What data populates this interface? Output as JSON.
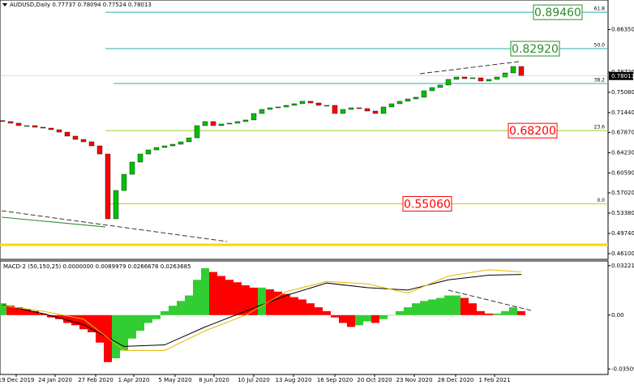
{
  "chart_data": [
    {
      "type": "candlestick",
      "title": "AUDUSD,Daily  0.77737 0.78094 0.77524 0.78013",
      "open": [
        0.7,
        0.6983,
        0.6954,
        0.691,
        0.691,
        0.6881,
        0.6866,
        0.6837,
        0.6793,
        0.6721,
        0.6662,
        0.6619,
        0.6546,
        0.64,
        0.5236,
        0.5745,
        0.6036,
        0.6255,
        0.64,
        0.6473,
        0.6517,
        0.6546,
        0.6575,
        0.6619,
        0.6691,
        0.691,
        0.6983,
        0.691,
        0.6939,
        0.6954,
        0.6983,
        0.7012,
        0.7128,
        0.7201,
        0.723,
        0.7245,
        0.7274,
        0.7303,
        0.7347,
        0.7317,
        0.7274,
        0.7274,
        0.7128,
        0.7201,
        0.723,
        0.7216,
        0.7172,
        0.7128,
        0.7245,
        0.7303,
        0.7347,
        0.739,
        0.742,
        0.7536,
        0.7594,
        0.7638,
        0.774,
        0.7783,
        0.7754,
        0.7769,
        0.7711,
        0.774,
        0.7783,
        0.7856,
        0.7972
      ],
      "close": [
        0.6983,
        0.6954,
        0.691,
        0.691,
        0.6881,
        0.6866,
        0.6837,
        0.6793,
        0.6721,
        0.6662,
        0.6619,
        0.6546,
        0.64,
        0.5236,
        0.5745,
        0.6036,
        0.6255,
        0.64,
        0.6473,
        0.6517,
        0.6546,
        0.6575,
        0.6619,
        0.6691,
        0.691,
        0.6983,
        0.691,
        0.6939,
        0.6954,
        0.6983,
        0.7012,
        0.7128,
        0.7201,
        0.723,
        0.7245,
        0.7274,
        0.7303,
        0.7347,
        0.7317,
        0.7274,
        0.7274,
        0.7128,
        0.7201,
        0.723,
        0.7216,
        0.7172,
        0.7128,
        0.7245,
        0.7303,
        0.7347,
        0.739,
        0.742,
        0.7536,
        0.7594,
        0.7638,
        0.774,
        0.7783,
        0.7754,
        0.7769,
        0.7711,
        0.774,
        0.7783,
        0.7856,
        0.7972,
        0.7812
      ],
      "up_color": "#00c000",
      "down_color": "#ff0000",
      "xlim": [
        -0.3,
        74.7
      ],
      "ylim": [
        0.4537,
        0.9137
      ],
      "yticks": [
        {
          "value": 0.8635,
          "label": "0.86350"
        },
        {
          "value": 0.7872,
          "label": "0.78720"
        },
        {
          "value": 0.7508,
          "label": "0.75080"
        },
        {
          "value": 0.7144,
          "label": "0.71440"
        },
        {
          "value": 0.6787,
          "label": "0.67870"
        },
        {
          "value": 0.6423,
          "label": "0.64230"
        },
        {
          "value": 0.6059,
          "label": "0.60590"
        },
        {
          "value": 0.5702,
          "label": "0.57020"
        },
        {
          "value": 0.5338,
          "label": "0.53380"
        },
        {
          "value": 0.4974,
          "label": "0.49740"
        },
        {
          "value": 0.461,
          "label": "0.46100"
        }
      ],
      "current_price": 0.78013,
      "levels": [
        {
          "value": 0.8946,
          "label": "0.89460",
          "ratio": "61.8",
          "color": "#20b2aa",
          "label_color": "#2e8b2e"
        },
        {
          "value": 0.8292,
          "label": "0.82920",
          "ratio": "50.0",
          "color": "#20b2aa",
          "label_color": "#2e8b2e"
        },
        {
          "value": 0.7666,
          "ratio": "38.2",
          "color": "#20b2aa"
        },
        {
          "value": 0.682,
          "label": "0.68200",
          "ratio": "23.6",
          "color": "#9acd32",
          "label_color": "#ff0000"
        },
        {
          "value": 0.5506,
          "label": "0.55060",
          "ratio": "0.0",
          "color": "#c8c800",
          "label_color": "#ff0000"
        }
      ],
      "support_line": {
        "value": 0.477,
        "color": "#ffd700"
      }
    },
    {
      "type": "macd",
      "title": "MACD-2 (50,150,25) 0.0000000 0.0089979 0.0266678 0.0263685",
      "values": [
        0.0077,
        0.0061,
        0.0051,
        0.0041,
        0.0026,
        0.001,
        -0.0015,
        -0.0026,
        -0.0051,
        -0.0066,
        -0.0092,
        -0.0112,
        -0.0179,
        -0.0306,
        -0.0281,
        -0.023,
        -0.0153,
        -0.0102,
        -0.0051,
        -0.0026,
        0.0026,
        0.0061,
        0.0092,
        0.0128,
        0.023,
        0.0306,
        0.0281,
        0.0255,
        0.023,
        0.0214,
        0.0194,
        0.0179,
        0.0179,
        0.0168,
        0.0153,
        0.0138,
        0.0117,
        0.0102,
        0.0077,
        0.0051,
        0.0026,
        -0.0015,
        -0.0051,
        -0.0077,
        -0.0066,
        -0.0041,
        -0.0051,
        -0.0026,
        0,
        0.0026,
        0.0051,
        0.0077,
        0.0092,
        0.0102,
        0.0112,
        0.0128,
        0.0128,
        0.0112,
        0.0077,
        0.0026,
        0.001,
        0.001,
        0.0026,
        0.0051,
        0.0026
      ],
      "up_color": "#32cd32",
      "down_color": "#ff0000",
      "series": [
        {
          "color": "#000000",
          "x": [
            0,
            5,
            10,
            15,
            20,
            25,
            30,
            35,
            40,
            45,
            50,
            55,
            60,
            64
          ],
          "values": [
            0.0066,
            0.001,
            -0.0061,
            -0.0204,
            -0.0194,
            -0.0077,
            0.0026,
            0.0128,
            0.0209,
            0.0179,
            0.0163,
            0.023,
            0.026,
            0.0265
          ]
        },
        {
          "color": "#e6b800",
          "x": [
            0,
            5,
            10,
            15,
            20,
            25,
            30,
            35,
            40,
            45,
            50,
            55,
            60,
            64
          ],
          "values": [
            0.0061,
            0.0026,
            -0.0026,
            -0.023,
            -0.023,
            -0.0102,
            0,
            0.0153,
            0.0219,
            0.0204,
            0.0143,
            0.0255,
            0.0296,
            0.0281
          ]
        }
      ],
      "xlim": [
        -0.3,
        74.7
      ],
      "ylim": [
        -0.0376,
        0.0342
      ],
      "yticks": [
        0.0322129,
        {
          "value": 0,
          "label": "0.00"
        },
        -0.035094
      ],
      "xticks": [
        {
          "value": 1.7,
          "label": "19 Dec 2019"
        },
        {
          "value": 6.5,
          "label": "24 Jan 2020"
        },
        {
          "value": 11.5,
          "label": "27 Feb 2020"
        },
        {
          "value": 16.2,
          "label": "1 Apr 2020"
        },
        {
          "value": 21.3,
          "label": "5 May 2020"
        },
        {
          "value": 26.1,
          "label": "8 Jun 2020"
        },
        {
          "value": 31,
          "label": "10 Jul 2020"
        },
        {
          "value": 35.9,
          "label": "13 Aug 2020"
        },
        {
          "value": 41,
          "label": "16 Sep 2020"
        },
        {
          "value": 45.9,
          "label": "20 Oct 2020"
        },
        {
          "value": 50.8,
          "label": "23 Nov 2020"
        },
        {
          "value": 55.9,
          "label": "28 Dec 2020"
        },
        {
          "value": 60.7,
          "label": "1 Feb 2021"
        }
      ]
    }
  ]
}
